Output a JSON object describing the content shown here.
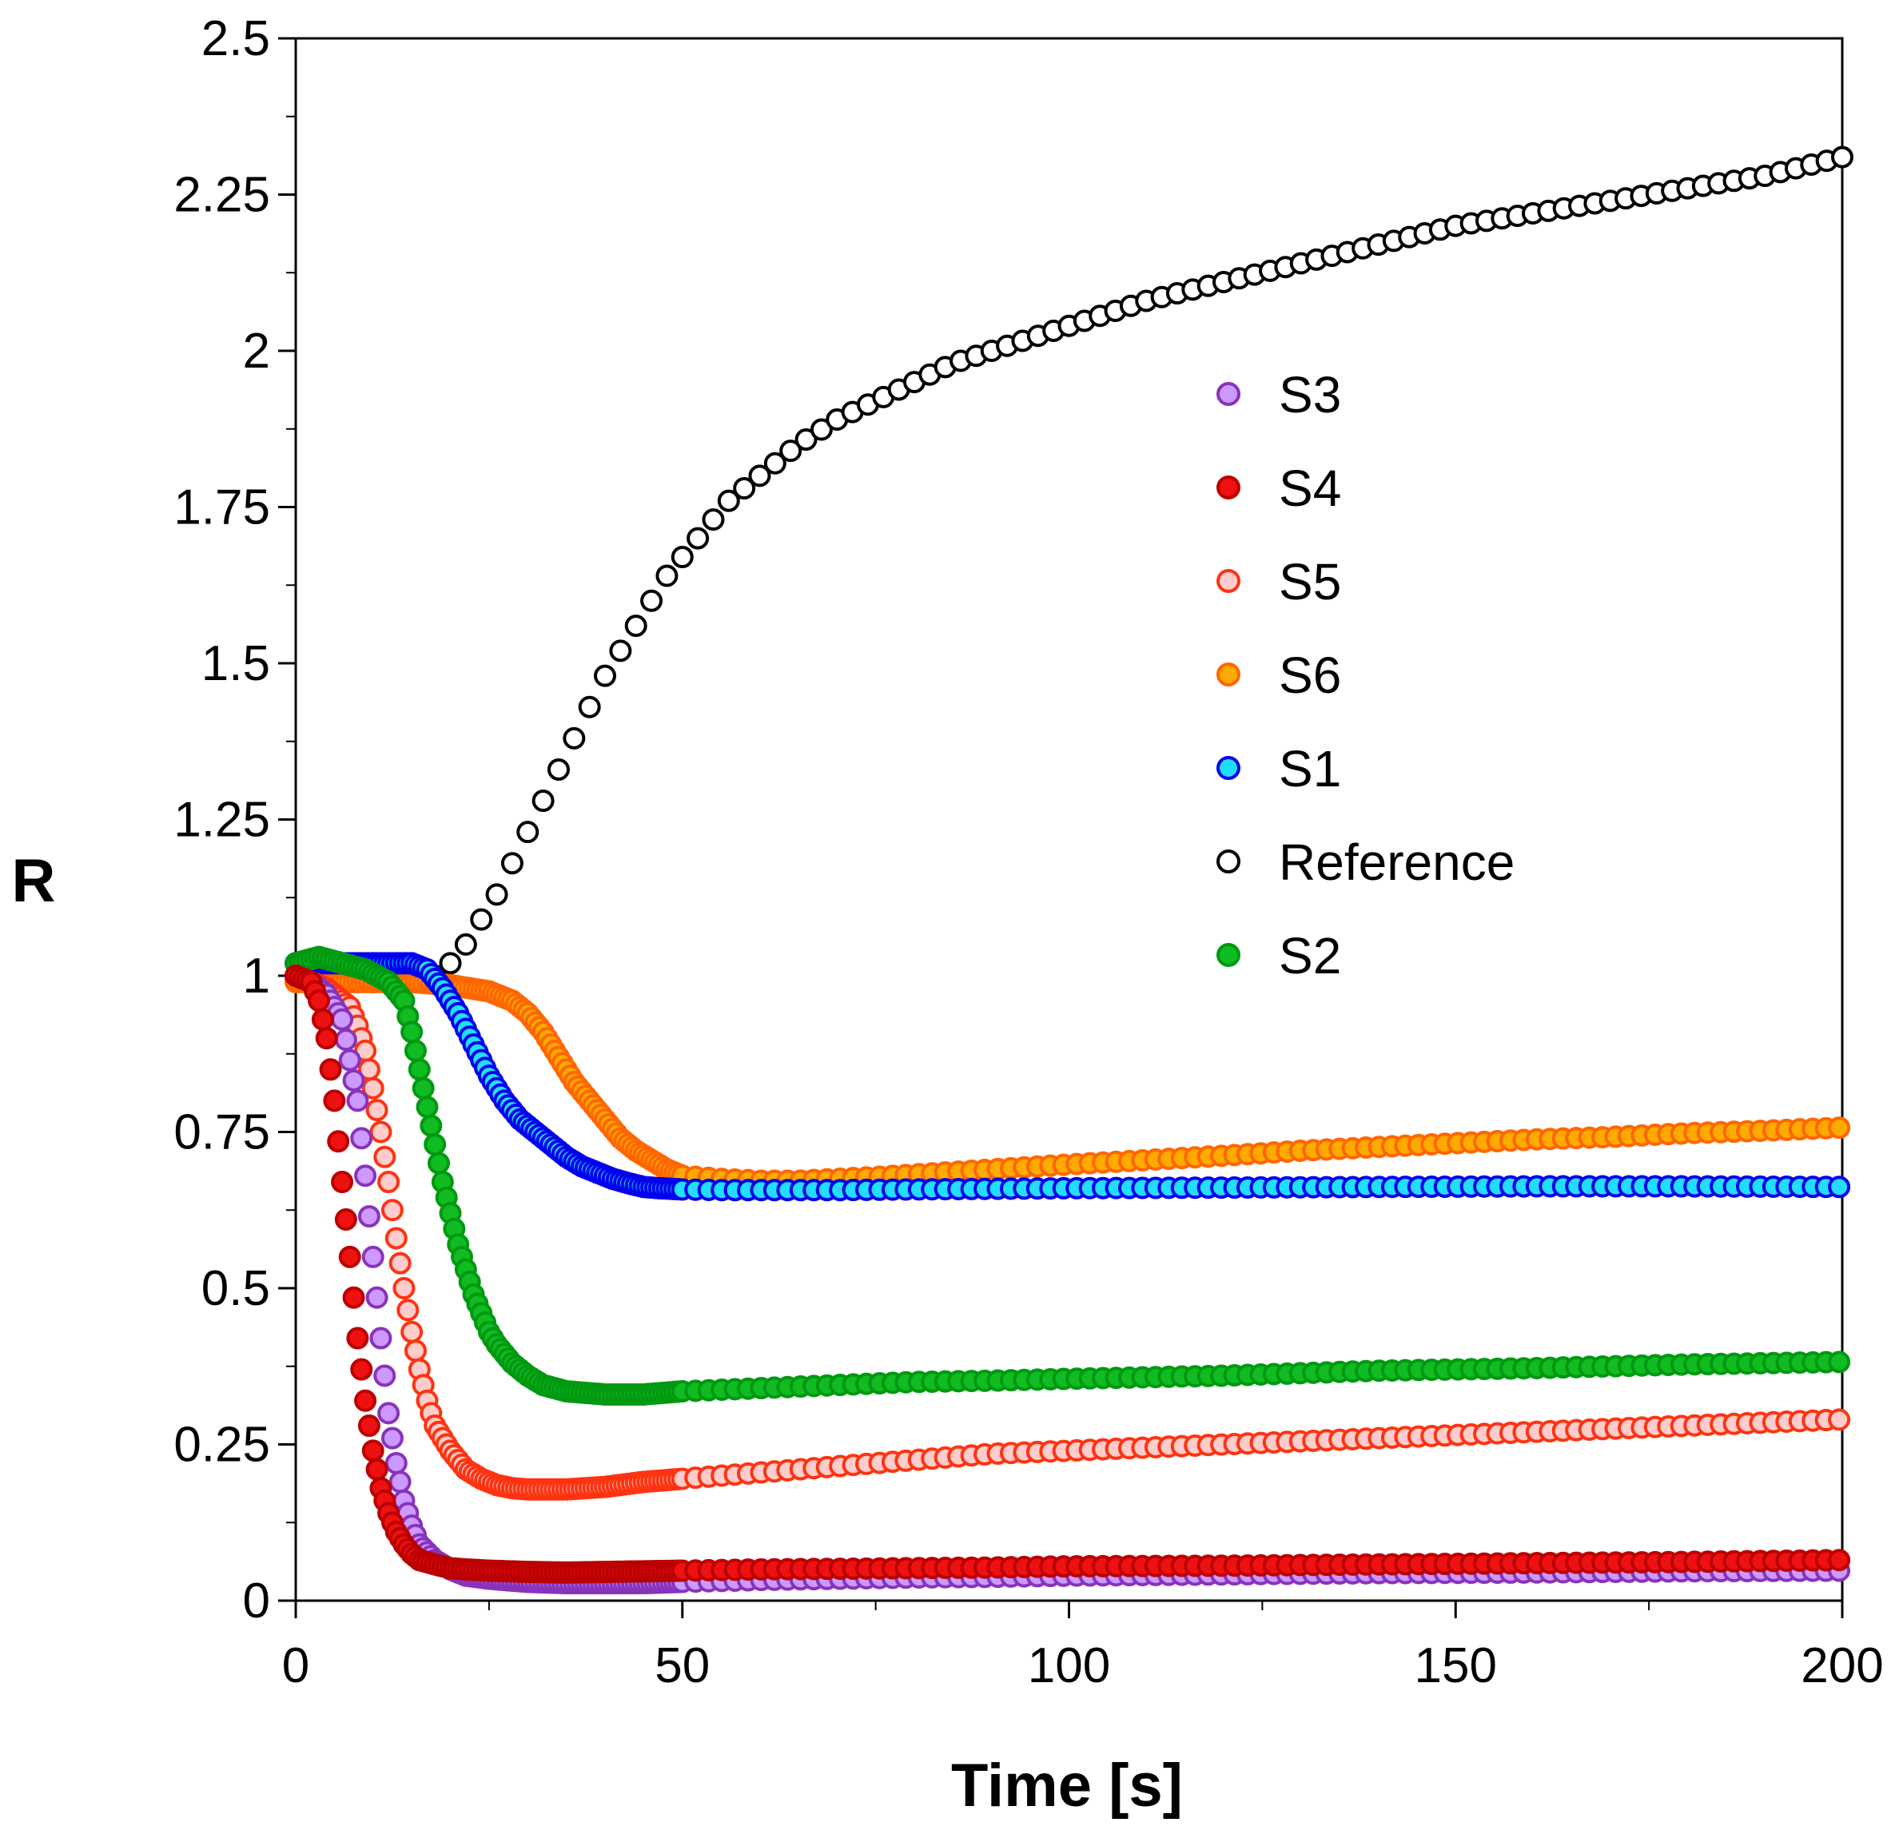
{
  "chart_data": {
    "type": "scatter",
    "title": "",
    "xlabel": "Time [s]",
    "ylabel": "R",
    "xlim": [
      0,
      200
    ],
    "ylim": [
      0,
      2.5
    ],
    "grid": false,
    "legend_position": "center-right",
    "x_ticks": [
      0,
      50,
      100,
      150,
      200
    ],
    "x_tick_labels": [
      "0",
      "50",
      "100",
      "150",
      "200"
    ],
    "y_ticks": [
      0,
      0.25,
      0.5,
      0.75,
      1,
      1.25,
      1.5,
      1.75,
      2,
      2.25,
      2.5
    ],
    "y_tick_labels": [
      "0",
      "0.25",
      "0.5",
      "0.75",
      "1",
      "1.25",
      "1.5",
      "1.75",
      "2",
      "2.25",
      "2.5"
    ],
    "series": [
      {
        "name": "S3",
        "fill": "#cc99ff",
        "stroke": "#8833bb",
        "x": [
          0,
          2,
          4,
          6,
          8,
          9,
          10,
          11,
          12,
          13,
          14,
          15,
          16,
          18,
          20,
          22,
          25,
          30,
          35,
          40,
          45,
          50,
          60,
          70,
          80,
          90,
          100,
          120,
          140,
          160,
          180,
          200
        ],
        "y": [
          1.0,
          0.99,
          0.97,
          0.93,
          0.8,
          0.68,
          0.55,
          0.42,
          0.3,
          0.22,
          0.16,
          0.12,
          0.09,
          0.065,
          0.05,
          0.04,
          0.035,
          0.03,
          0.028,
          0.028,
          0.028,
          0.03,
          0.033,
          0.035,
          0.037,
          0.038,
          0.04,
          0.042,
          0.044,
          0.045,
          0.047,
          0.048
        ]
      },
      {
        "name": "S4",
        "fill": "#ee1111",
        "stroke": "#bb0000",
        "x": [
          0,
          2,
          3,
          4,
          5,
          6,
          7,
          8,
          9,
          10,
          11,
          12,
          13,
          14,
          15,
          16,
          18,
          20,
          22,
          25,
          30,
          35,
          40,
          45,
          50,
          60,
          70,
          80,
          90,
          100,
          120,
          140,
          160,
          180,
          200
        ],
        "y": [
          1.0,
          0.99,
          0.96,
          0.9,
          0.8,
          0.67,
          0.55,
          0.42,
          0.32,
          0.24,
          0.18,
          0.14,
          0.11,
          0.09,
          0.075,
          0.065,
          0.058,
          0.052,
          0.05,
          0.048,
          0.046,
          0.045,
          0.046,
          0.047,
          0.048,
          0.05,
          0.051,
          0.052,
          0.053,
          0.055,
          0.056,
          0.058,
          0.06,
          0.062,
          0.065
        ]
      },
      {
        "name": "S5",
        "fill": "#ffcccc",
        "stroke": "#ff3311",
        "x": [
          0,
          4,
          7,
          8,
          9,
          10,
          11,
          12,
          13,
          14,
          15,
          16,
          17,
          18,
          20,
          22,
          24,
          26,
          28,
          30,
          35,
          40,
          45,
          50,
          60,
          70,
          80,
          90,
          100,
          120,
          140,
          160,
          180,
          200
        ],
        "y": [
          1.0,
          0.98,
          0.95,
          0.92,
          0.88,
          0.82,
          0.75,
          0.67,
          0.58,
          0.5,
          0.43,
          0.37,
          0.32,
          0.28,
          0.24,
          0.21,
          0.195,
          0.185,
          0.18,
          0.178,
          0.178,
          0.182,
          0.19,
          0.195,
          0.205,
          0.215,
          0.225,
          0.235,
          0.24,
          0.25,
          0.26,
          0.27,
          0.28,
          0.29
        ]
      },
      {
        "name": "S6",
        "fill": "#ffaa00",
        "stroke": "#ff6600",
        "x": [
          0,
          5,
          10,
          15,
          20,
          25,
          28,
          30,
          32,
          34,
          36,
          38,
          40,
          42,
          44,
          46,
          48,
          50,
          55,
          60,
          65,
          70,
          75,
          80,
          85,
          90,
          100,
          110,
          120,
          130,
          140,
          150,
          160,
          170,
          180,
          190,
          200
        ],
        "y": [
          0.99,
          0.99,
          0.99,
          0.99,
          0.985,
          0.975,
          0.96,
          0.94,
          0.91,
          0.87,
          0.83,
          0.8,
          0.77,
          0.74,
          0.72,
          0.705,
          0.69,
          0.68,
          0.675,
          0.672,
          0.672,
          0.675,
          0.678,
          0.682,
          0.686,
          0.69,
          0.698,
          0.705,
          0.712,
          0.72,
          0.726,
          0.732,
          0.738,
          0.742,
          0.748,
          0.752,
          0.757
        ]
      },
      {
        "name": "S1",
        "fill": "#22ddff",
        "stroke": "#0000ee",
        "x": [
          0,
          5,
          10,
          15,
          17,
          19,
          21,
          23,
          25,
          27,
          29,
          31,
          33,
          35,
          37,
          39,
          41,
          43,
          45,
          47,
          50,
          55,
          60,
          70,
          80,
          90,
          100,
          120,
          140,
          160,
          180,
          200
        ],
        "y": [
          1.02,
          1.02,
          1.02,
          1.02,
          1.01,
          0.98,
          0.94,
          0.89,
          0.84,
          0.8,
          0.77,
          0.75,
          0.73,
          0.71,
          0.695,
          0.685,
          0.675,
          0.668,
          0.662,
          0.66,
          0.658,
          0.657,
          0.657,
          0.657,
          0.658,
          0.659,
          0.66,
          0.661,
          0.662,
          0.663,
          0.663,
          0.662
        ]
      },
      {
        "name": "Reference",
        "fill": "#ffffff",
        "stroke": "#000000",
        "x": [
          0,
          5,
          10,
          15,
          18,
          20,
          22,
          24,
          26,
          28,
          30,
          32,
          34,
          36,
          38,
          40,
          42,
          44,
          46,
          48,
          50,
          52,
          54,
          56,
          58,
          60,
          65,
          70,
          75,
          80,
          85,
          90,
          95,
          100,
          110,
          120,
          130,
          140,
          150,
          160,
          170,
          180,
          190,
          200
        ],
        "y": [
          1.0,
          1.0,
          0.99,
          0.99,
          1.0,
          1.02,
          1.05,
          1.09,
          1.13,
          1.18,
          1.23,
          1.28,
          1.33,
          1.38,
          1.43,
          1.48,
          1.52,
          1.56,
          1.6,
          1.64,
          1.67,
          1.7,
          1.73,
          1.76,
          1.78,
          1.8,
          1.85,
          1.89,
          1.92,
          1.95,
          1.98,
          2.0,
          2.02,
          2.04,
          2.08,
          2.11,
          2.14,
          2.17,
          2.2,
          2.22,
          2.24,
          2.26,
          2.28,
          2.31
        ]
      },
      {
        "name": "S2",
        "fill": "#11bb22",
        "stroke": "#009911",
        "x": [
          0,
          3,
          6,
          9,
          12,
          14,
          15,
          16,
          17,
          18,
          19,
          20,
          21,
          22,
          23,
          24,
          25,
          26,
          28,
          30,
          32,
          35,
          40,
          45,
          50,
          60,
          70,
          80,
          90,
          100,
          120,
          140,
          160,
          180,
          200
        ],
        "y": [
          1.02,
          1.03,
          1.02,
          1.01,
          0.99,
          0.96,
          0.91,
          0.85,
          0.79,
          0.73,
          0.67,
          0.62,
          0.57,
          0.53,
          0.49,
          0.46,
          0.43,
          0.41,
          0.38,
          0.36,
          0.345,
          0.335,
          0.33,
          0.33,
          0.335,
          0.34,
          0.345,
          0.35,
          0.352,
          0.355,
          0.36,
          0.368,
          0.372,
          0.378,
          0.382
        ]
      }
    ]
  }
}
